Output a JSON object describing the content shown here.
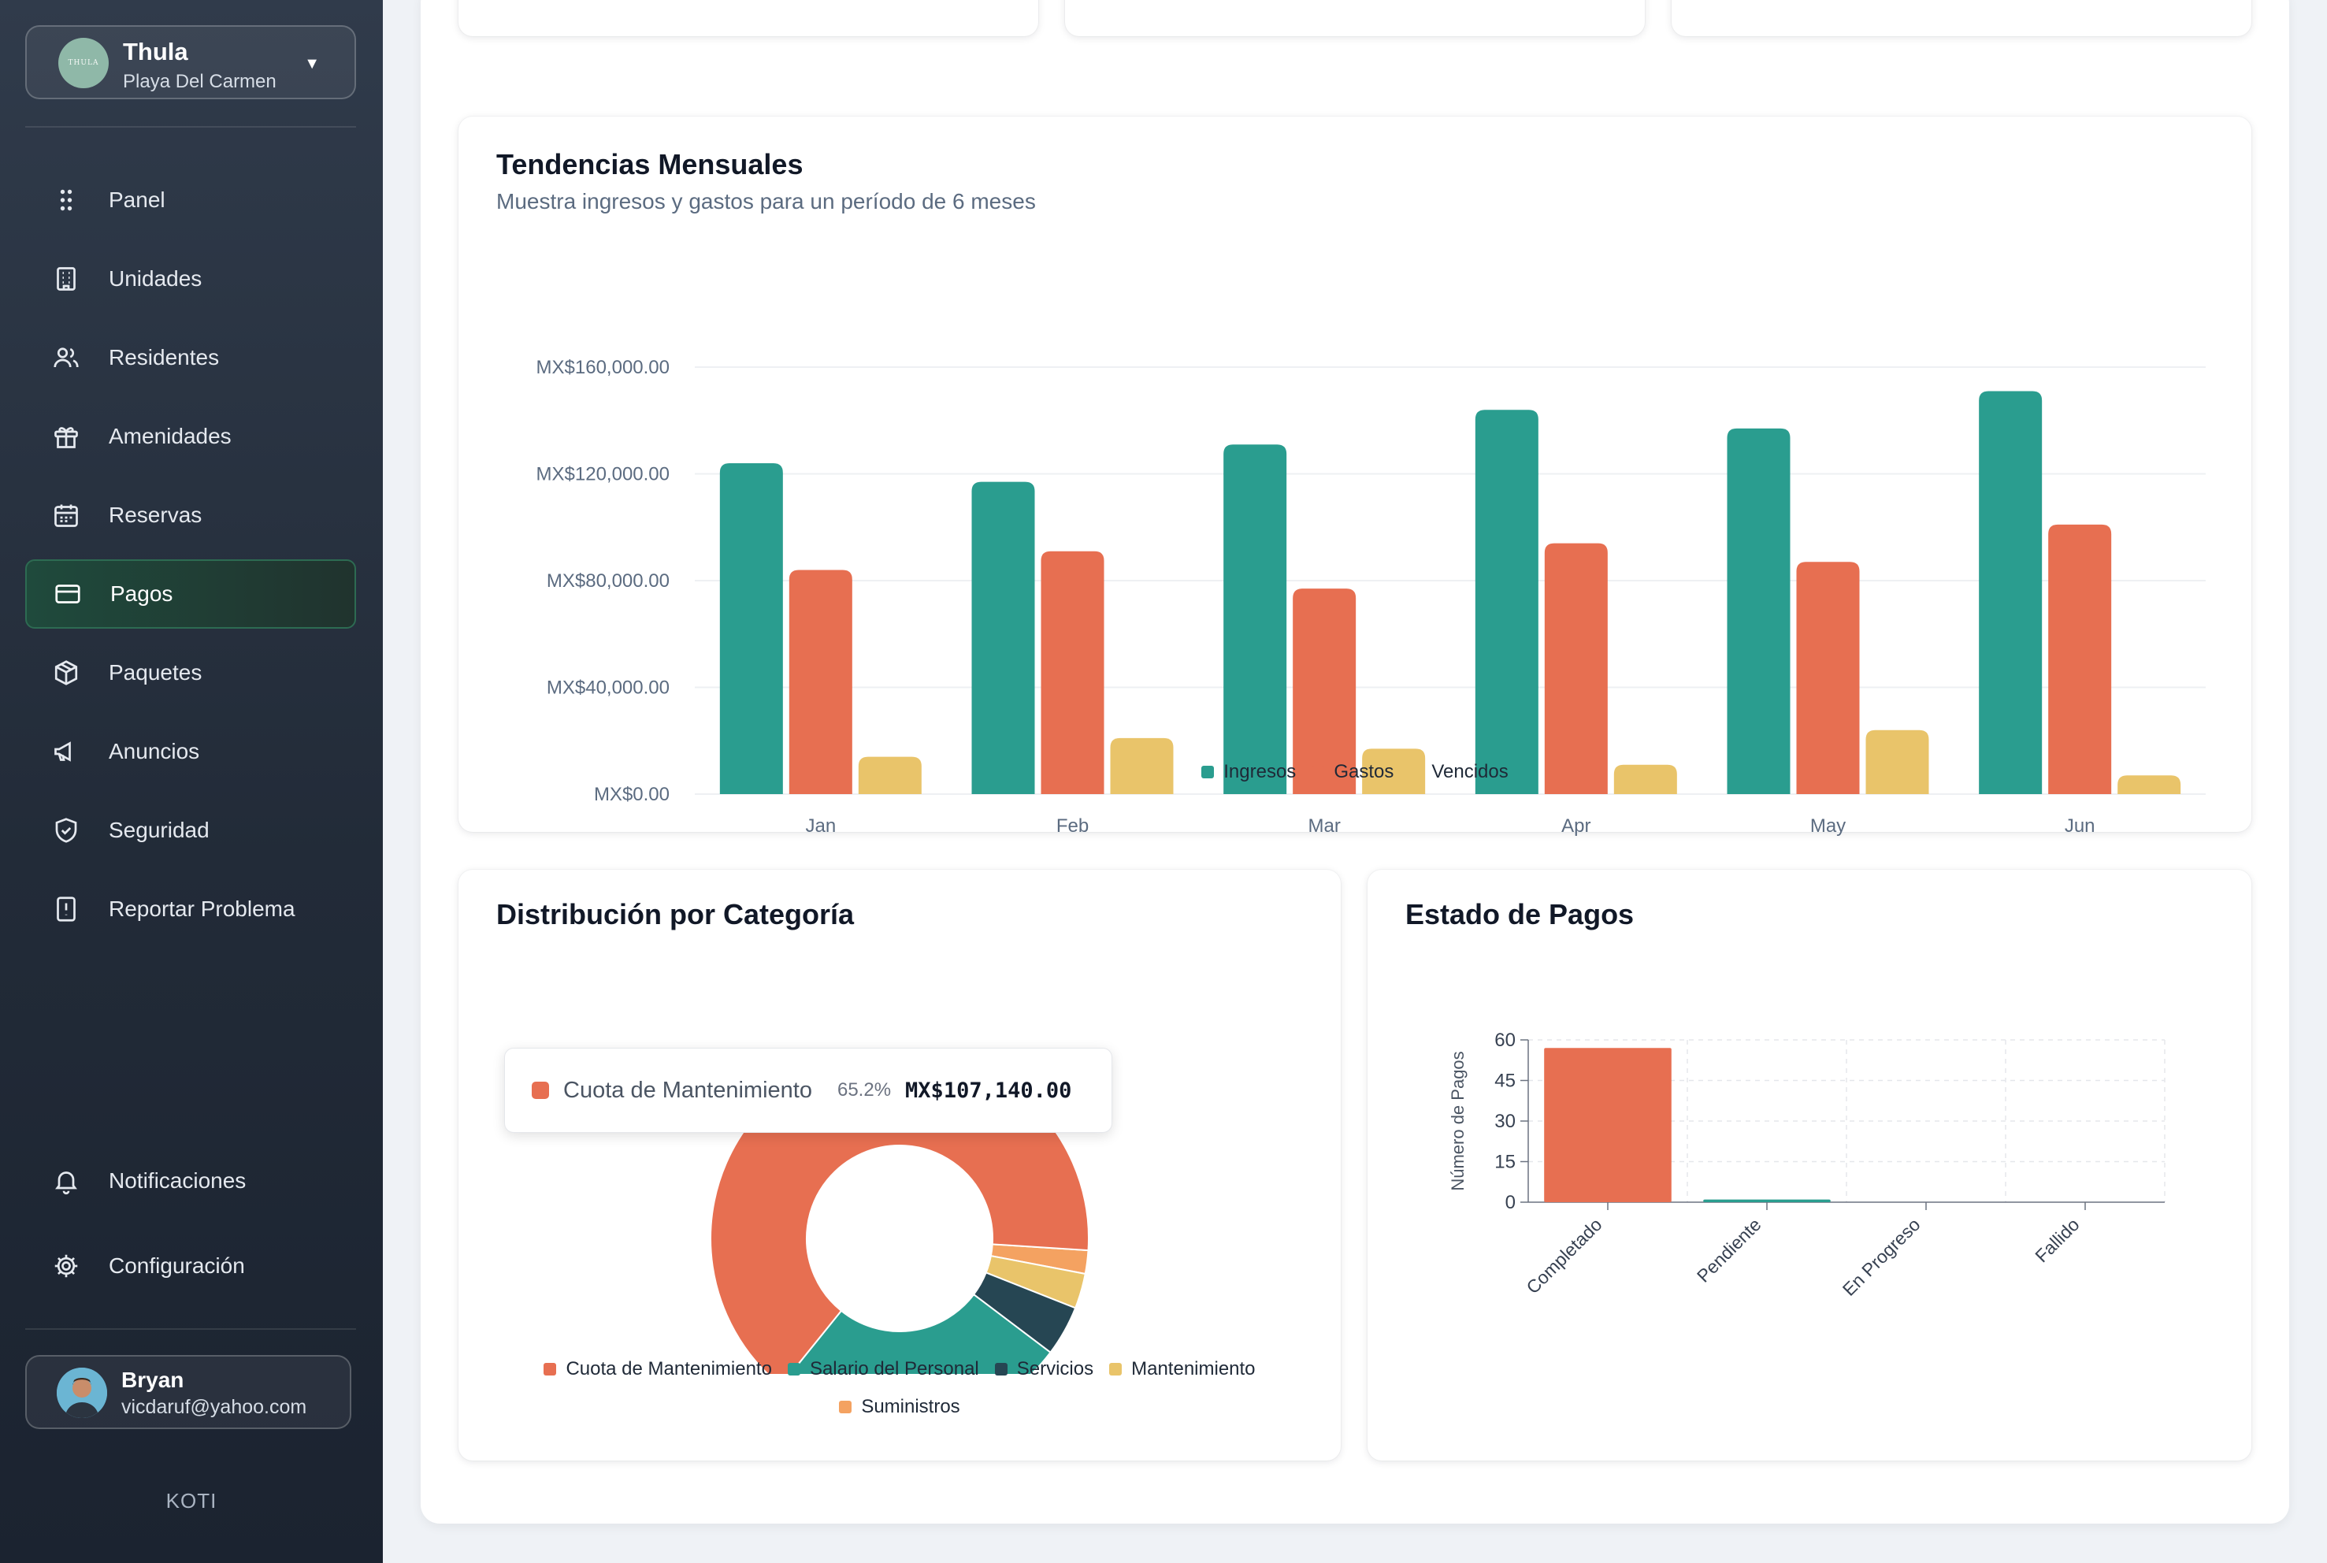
{
  "org": {
    "name": "Thula",
    "location": "Playa Del Carmen",
    "logo_text": "THULA"
  },
  "nav": [
    {
      "label": "Panel",
      "icon": "grid-dots-icon"
    },
    {
      "label": "Unidades",
      "icon": "building-icon"
    },
    {
      "label": "Residentes",
      "icon": "users-icon"
    },
    {
      "label": "Amenidades",
      "icon": "gift-icon"
    },
    {
      "label": "Reservas",
      "icon": "calendar-icon"
    },
    {
      "label": "Pagos",
      "icon": "credit-card-icon",
      "active": true
    },
    {
      "label": "Paquetes",
      "icon": "package-icon"
    },
    {
      "label": "Anuncios",
      "icon": "megaphone-icon"
    },
    {
      "label": "Seguridad",
      "icon": "shield-icon"
    },
    {
      "label": "Reportar Problema",
      "icon": "alert-file-icon"
    }
  ],
  "nav_bottom": [
    {
      "label": "Notificaciones",
      "icon": "bell-icon"
    },
    {
      "label": "Configuración",
      "icon": "gear-icon"
    }
  ],
  "user": {
    "name": "Bryan",
    "email": "vicdaruf@yahoo.com"
  },
  "brand": "KOTI",
  "colors": {
    "ingresos": "#2a9d8f",
    "gastos": "#e76f51",
    "vencidos": "#e9c46a",
    "servicios": "#264653",
    "suministros": "#f4a261"
  },
  "trends": {
    "title": "Tendencias Mensuales",
    "subtitle": "Muestra ingresos y gastos para un período de 6 meses",
    "chart_data": {
      "type": "bar",
      "categories": [
        "Jan",
        "Feb",
        "Mar",
        "Apr",
        "May",
        "Jun"
      ],
      "series": [
        {
          "name": "Ingresos",
          "values": [
            124000,
            117000,
            131000,
            144000,
            137000,
            151000
          ]
        },
        {
          "name": "Gastos",
          "values": [
            84000,
            91000,
            77000,
            94000,
            87000,
            101000
          ]
        },
        {
          "name": "Vencidos",
          "values": [
            14000,
            21000,
            17000,
            11000,
            24000,
            7000
          ]
        }
      ],
      "yticks": [
        "MX$0.00",
        "MX$40,000.00",
        "MX$80,000.00",
        "MX$120,000.00",
        "MX$160,000.00"
      ],
      "ylim": [
        0,
        160000
      ],
      "legend": [
        "Ingresos",
        "Gastos",
        "Vencidos"
      ]
    }
  },
  "category": {
    "title": "Distribución por Categoría",
    "chart_data": {
      "type": "pie",
      "labels": [
        "Cuota de Mantenimiento",
        "Salario del Personal",
        "Servicios",
        "Mantenimiento",
        "Suministros"
      ],
      "values": [
        65.2,
        25.5,
        4.3,
        3.0,
        2.0
      ],
      "legend": [
        "Cuota de Mantenimiento",
        "Salario del Personal",
        "Servicios",
        "Mantenimiento",
        "Suministros"
      ]
    },
    "tooltip": {
      "label": "Cuota de Mantenimiento",
      "percent": "65.2%",
      "value": "MX$107,140.00"
    }
  },
  "status": {
    "title": "Estado de Pagos",
    "chart_data": {
      "type": "bar",
      "categories": [
        "Completado",
        "Pendiente",
        "En Progreso",
        "Fallido"
      ],
      "values": [
        57,
        1,
        0,
        0
      ],
      "ylabel": "Número de Pagos",
      "yticks": [
        "0",
        "15",
        "30",
        "45",
        "60"
      ],
      "ylim": [
        0,
        60
      ]
    }
  }
}
